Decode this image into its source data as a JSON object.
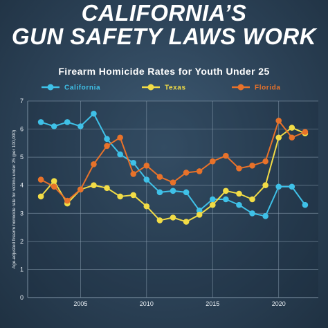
{
  "headline": {
    "line1": "CALIFORNIA’S",
    "line2": "GUN SAFETY LAWS WORK"
  },
  "colors": {
    "California": "#3fc1e8",
    "Texas": "#f2dc46",
    "Florida": "#e8722a",
    "grid": "#8fa3b5"
  },
  "chart_data": {
    "type": "line",
    "title": "Firearm Homicide Rates for Youth Under 25",
    "ylabel": "Age-adjusted firearm homicide rate for victims under 25 (per 100,000)",
    "xlabel": "",
    "xlim": [
      2001,
      2023
    ],
    "ylim": [
      0,
      7
    ],
    "x_ticks": [
      2005,
      2010,
      2015,
      2020
    ],
    "y_ticks": [
      0,
      1,
      2,
      3,
      4,
      5,
      6,
      7
    ],
    "grid": true,
    "legend_position": "top",
    "x": [
      2002,
      2003,
      2004,
      2005,
      2006,
      2007,
      2008,
      2009,
      2010,
      2011,
      2012,
      2013,
      2014,
      2015,
      2016,
      2017,
      2018,
      2019,
      2020,
      2021,
      2022
    ],
    "series": [
      {
        "name": "California",
        "values": [
          6.25,
          6.1,
          6.25,
          6.1,
          6.55,
          5.65,
          5.1,
          4.8,
          4.2,
          3.75,
          3.8,
          3.75,
          3.1,
          3.5,
          3.5,
          3.3,
          3.0,
          2.9,
          3.95,
          3.95,
          3.3
        ]
      },
      {
        "name": "Texas",
        "values": [
          3.6,
          4.15,
          3.35,
          3.85,
          4.0,
          3.9,
          3.6,
          3.65,
          3.25,
          2.75,
          2.85,
          2.7,
          2.95,
          3.3,
          3.8,
          3.7,
          3.5,
          4.0,
          5.7,
          6.05,
          5.85
        ]
      },
      {
        "name": "Florida",
        "values": [
          4.2,
          3.95,
          3.45,
          3.85,
          4.75,
          5.4,
          5.7,
          4.4,
          4.7,
          4.3,
          4.1,
          4.45,
          4.5,
          4.85,
          5.05,
          4.6,
          4.7,
          4.85,
          6.3,
          5.7,
          5.9
        ]
      }
    ]
  }
}
